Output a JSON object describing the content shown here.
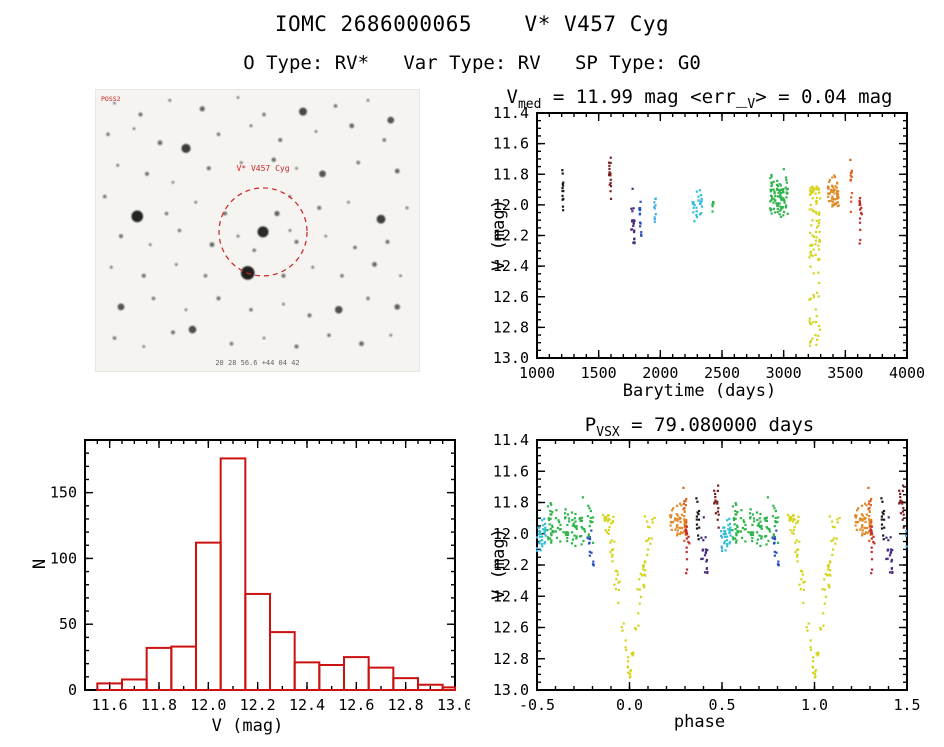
{
  "page": {
    "title": "IOMC 2686000065    V* V457 Cyg",
    "subtitle": "O Type: RV*   Var Type: RV   SP Type: G0"
  },
  "finder": {
    "label_survey": "POSS2",
    "label_target": "V* V457 Cyg",
    "label_coords": "20 28 56.6  +44 04 42",
    "circle": [
      51.7,
      50.5,
      44
    ],
    "circle_color": "#cc2222",
    "stars": [
      [
        6,
        5,
        1.4
      ],
      [
        14,
        9,
        2
      ],
      [
        23,
        4,
        1.5
      ],
      [
        33,
        7,
        2.6
      ],
      [
        44,
        3,
        1.4
      ],
      [
        52,
        9,
        1.8
      ],
      [
        64,
        8,
        4
      ],
      [
        74,
        6,
        1.8
      ],
      [
        84,
        4,
        1.4
      ],
      [
        91,
        11,
        3.4
      ],
      [
        4,
        16,
        1.8
      ],
      [
        12,
        14,
        1.4
      ],
      [
        20,
        19,
        2.4
      ],
      [
        28,
        21,
        4.6
      ],
      [
        38,
        16,
        1.8
      ],
      [
        48,
        13,
        1.5
      ],
      [
        57,
        18,
        2
      ],
      [
        68,
        15,
        1.4
      ],
      [
        79,
        13,
        2.4
      ],
      [
        89,
        18,
        1.8
      ],
      [
        7,
        27,
        1.5
      ],
      [
        16,
        30,
        2
      ],
      [
        24,
        33,
        1.4
      ],
      [
        35,
        28,
        2
      ],
      [
        45,
        26,
        1.5
      ],
      [
        55,
        25,
        2.2
      ],
      [
        62,
        28,
        1.4
      ],
      [
        70,
        30,
        3.4
      ],
      [
        81,
        26,
        1.8
      ],
      [
        93,
        29,
        2.4
      ],
      [
        3,
        38,
        1.8
      ],
      [
        13,
        45,
        5.8
      ],
      [
        22,
        44,
        1.8
      ],
      [
        31,
        40,
        1.4
      ],
      [
        40,
        44,
        2
      ],
      [
        60,
        38,
        1.5
      ],
      [
        69,
        42,
        2
      ],
      [
        78,
        40,
        1.4
      ],
      [
        88,
        46,
        4.4
      ],
      [
        96,
        42,
        1.5
      ],
      [
        8,
        52,
        2
      ],
      [
        17,
        55,
        1.4
      ],
      [
        26,
        50,
        1.8
      ],
      [
        36,
        55,
        2.4
      ],
      [
        44,
        52,
        1.5
      ],
      [
        62,
        54,
        2
      ],
      [
        71,
        52,
        1.4
      ],
      [
        80,
        56,
        1.8
      ],
      [
        90,
        54,
        2
      ],
      [
        5,
        63,
        1.5
      ],
      [
        15,
        66,
        2
      ],
      [
        25,
        62,
        1.4
      ],
      [
        34,
        66,
        1.8
      ],
      [
        47,
        65,
        6.8
      ],
      [
        58,
        66,
        2
      ],
      [
        67,
        63,
        1.5
      ],
      [
        76,
        66,
        1.8
      ],
      [
        86,
        62,
        2.4
      ],
      [
        94,
        66,
        1.4
      ],
      [
        8,
        77,
        3.4
      ],
      [
        18,
        74,
        1.8
      ],
      [
        28,
        78,
        1.4
      ],
      [
        38,
        74,
        2
      ],
      [
        48,
        78,
        1.8
      ],
      [
        58,
        76,
        1.4
      ],
      [
        66,
        80,
        2
      ],
      [
        75,
        78,
        3.8
      ],
      [
        84,
        74,
        1.8
      ],
      [
        93,
        77,
        2.8
      ],
      [
        6,
        88,
        1.8
      ],
      [
        15,
        91,
        1.4
      ],
      [
        24,
        86,
        2
      ],
      [
        30,
        85,
        3.8
      ],
      [
        42,
        90,
        1.8
      ],
      [
        52,
        88,
        1.4
      ],
      [
        62,
        91,
        2
      ],
      [
        72,
        87,
        1.8
      ],
      [
        82,
        90,
        2.4
      ],
      [
        91,
        87,
        1.4
      ],
      [
        51.7,
        50.5,
        5.5
      ],
      [
        56,
        44,
        2.6
      ],
      [
        49,
        57,
        1.8
      ],
      [
        60,
        50,
        1.5
      ]
    ]
  },
  "chart_data": [
    {
      "type": "scatter",
      "name": "lightcurve",
      "title": "V_med = 11.99 mag <err_V> = 0.04 mag",
      "title_parts": {
        "p1": "V",
        "s1": "med",
        "p2": " = 11.99 mag <err_",
        "s2": "V",
        "p3": "> = 0.04 mag"
      },
      "xlabel": "Barytime (days)",
      "ylabel": "V (mag)",
      "xlim": [
        1000,
        4000
      ],
      "ylim": [
        11.4,
        13.0
      ],
      "yinvert": true,
      "xticks": [
        1000,
        1500,
        2000,
        2500,
        3000,
        3500,
        4000
      ],
      "xdec": 0,
      "xminor": 100,
      "yticks": [
        11.4,
        11.6,
        11.8,
        12.0,
        12.2,
        12.4,
        12.6,
        12.8,
        13.0
      ],
      "ydec": 1,
      "yminor": 0.05,
      "clusters": [
        {
          "t": 1210,
          "dt": 6,
          "cols": 1,
          "n": 13,
          "color": "#1a1a1a",
          "mid": 11.92,
          "sd": 0.13,
          "min": 11.7,
          "max": 12.14,
          "ph": 0.37,
          "pw": 0.012
        },
        {
          "t": 1592,
          "dt": 10,
          "cols": 2,
          "n": 16,
          "color": "#7a2020",
          "mid": 11.85,
          "sd": 0.15,
          "min": 11.6,
          "max": 12.12,
          "ph": 0.47,
          "pw": 0.015
        },
        {
          "t": 1778,
          "dt": 16,
          "cols": 2,
          "n": 20,
          "color": "#472a80",
          "mid": 12.1,
          "sd": 0.18,
          "min": 11.88,
          "max": 12.46,
          "ph": 0.405,
          "pw": 0.02
        },
        {
          "t": 1838,
          "dt": 10,
          "cols": 2,
          "n": 15,
          "color": "#2a4fc0",
          "mid": 12.12,
          "sd": 0.12,
          "min": 11.98,
          "max": 12.33,
          "ph": 0.79,
          "pw": 0.02
        },
        {
          "t": 1958,
          "dt": 8,
          "cols": 2,
          "n": 10,
          "color": "#3fb0dc",
          "mid": 12.0,
          "sd": 0.1,
          "min": 11.88,
          "max": 12.18,
          "ph": 0.505,
          "pw": 0.012
        },
        {
          "t": 2300,
          "dt": 45,
          "cols": 3,
          "n": 24,
          "color": "#2fc0d8",
          "mid": 12.0,
          "sd": 0.08,
          "min": 11.88,
          "max": 12.15,
          "ph": 0.53,
          "pw": 0.02
        },
        {
          "t": 2428,
          "dt": 8,
          "cols": 1,
          "n": 7,
          "color": "#2db54b",
          "mid": 12.0,
          "sd": 0.06,
          "min": 11.92,
          "max": 12.1,
          "ph": 0.585,
          "pw": 0.012
        },
        {
          "t": 2962,
          "dt": 75,
          "cols": 6,
          "n": 95,
          "color": "#2db54b",
          "mid": 11.95,
          "sd": 0.11,
          "min": 11.7,
          "max": 12.28,
          "ph": 0.68,
          "pw": 0.13
        },
        {
          "t": 3252,
          "dt": 48,
          "cols": 4,
          "n": 100,
          "color": "#d4d41c",
          "mid": 12.25,
          "sd": 0.3,
          "min": 11.88,
          "max": 12.92,
          "ph": 0.0,
          "pw": 0.115,
          "ecl": true
        },
        {
          "t": 3402,
          "dt": 48,
          "cols": 4,
          "n": 60,
          "color": "#e08a28",
          "mid": 11.92,
          "sd": 0.09,
          "min": 11.76,
          "max": 12.12,
          "ph": 0.265,
          "pw": 0.05
        },
        {
          "t": 3548,
          "dt": 10,
          "cols": 1,
          "n": 12,
          "color": "#dc5f1e",
          "mid": 11.85,
          "sd": 0.15,
          "min": 11.6,
          "max": 12.06,
          "ph": 0.3,
          "pw": 0.012
        },
        {
          "t": 3625,
          "dt": 12,
          "cols": 2,
          "n": 16,
          "color": "#c22c2c",
          "mid": 12.05,
          "sd": 0.12,
          "min": 11.88,
          "max": 12.33,
          "ph": 0.315,
          "pw": 0.012
        }
      ]
    },
    {
      "type": "histogram",
      "name": "v-distribution",
      "xlabel": "V (mag)",
      "ylabel": "N",
      "xlim": [
        11.5,
        13.0
      ],
      "ylim": [
        0,
        190
      ],
      "yinvert": false,
      "xticks": [
        11.6,
        11.8,
        12.0,
        12.2,
        12.4,
        12.6,
        12.8,
        13.0
      ],
      "xdec": 1,
      "xminor": 0.05,
      "yticks": [
        0,
        50,
        100,
        150
      ],
      "ydec": 0,
      "yminor": 10,
      "bin_start": 11.55,
      "bin_width": 0.1,
      "counts": [
        5,
        8,
        32,
        33,
        112,
        176,
        73,
        44,
        21,
        19,
        25,
        17,
        9,
        4,
        2
      ],
      "color": "#cc1111"
    },
    {
      "type": "scatter",
      "name": "phase-folded",
      "title": "P_VSX = 79.080000 days",
      "title_parts": {
        "p1": "P",
        "s1": "VSX",
        "p2": " = 79.080000 days"
      },
      "xlabel": "phase",
      "ylabel": "V (mag)",
      "xlim": [
        -0.5,
        1.5
      ],
      "ylim": [
        11.4,
        13.0
      ],
      "yinvert": true,
      "xticks": [
        -0.5,
        0.0,
        0.5,
        1.0,
        1.5
      ],
      "xdec": 1,
      "xminor": 0.1,
      "yticks": [
        11.4,
        11.6,
        11.8,
        12.0,
        12.2,
        12.4,
        12.6,
        12.8,
        13.0
      ],
      "ydec": 1,
      "yminor": 0.05
    }
  ]
}
